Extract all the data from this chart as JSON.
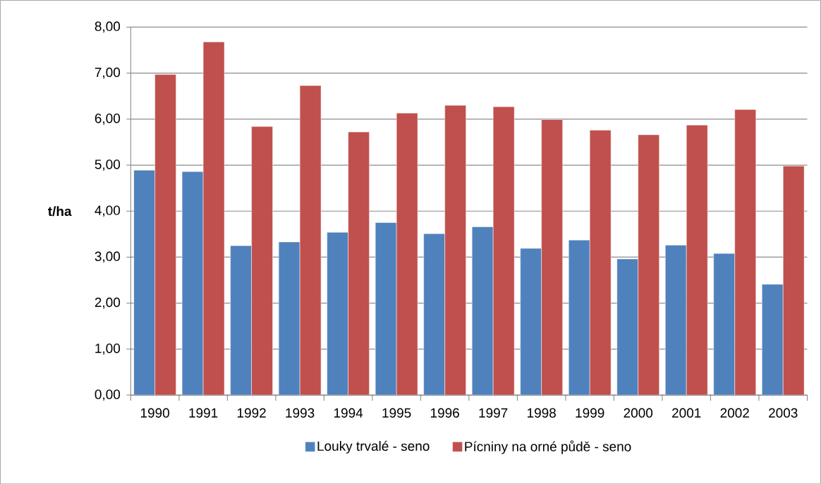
{
  "chart_data": {
    "type": "bar",
    "ylabel": "t/ha",
    "categories": [
      "1990",
      "1991",
      "1992",
      "1993",
      "1994",
      "1995",
      "1996",
      "1997",
      "1998",
      "1999",
      "2000",
      "2001",
      "2002",
      "2003"
    ],
    "series": [
      {
        "name": "Louky trvalé - seno",
        "color": "#4f81bd",
        "values": [
          4.89,
          4.86,
          3.25,
          3.33,
          3.54,
          3.75,
          3.51,
          3.66,
          3.19,
          3.37,
          2.96,
          3.26,
          3.08,
          2.41
        ]
      },
      {
        "name": "Pícniny na orné půdě - seno",
        "color": "#c0504d",
        "values": [
          6.97,
          7.68,
          5.84,
          6.73,
          5.72,
          6.13,
          6.3,
          6.27,
          5.99,
          5.76,
          5.66,
          5.87,
          6.21,
          4.98
        ]
      }
    ],
    "ylim": [
      0,
      8
    ],
    "yticks": [
      {
        "value": 0,
        "label": "0,00"
      },
      {
        "value": 1,
        "label": "1,00"
      },
      {
        "value": 2,
        "label": "2,00"
      },
      {
        "value": 3,
        "label": "3,00"
      },
      {
        "value": 4,
        "label": "4,00"
      },
      {
        "value": 5,
        "label": "5,00"
      },
      {
        "value": 6,
        "label": "6,00"
      },
      {
        "value": 7,
        "label": "7,00"
      },
      {
        "value": 8,
        "label": "8,00"
      }
    ],
    "grid": "y",
    "legend": "bottom"
  }
}
